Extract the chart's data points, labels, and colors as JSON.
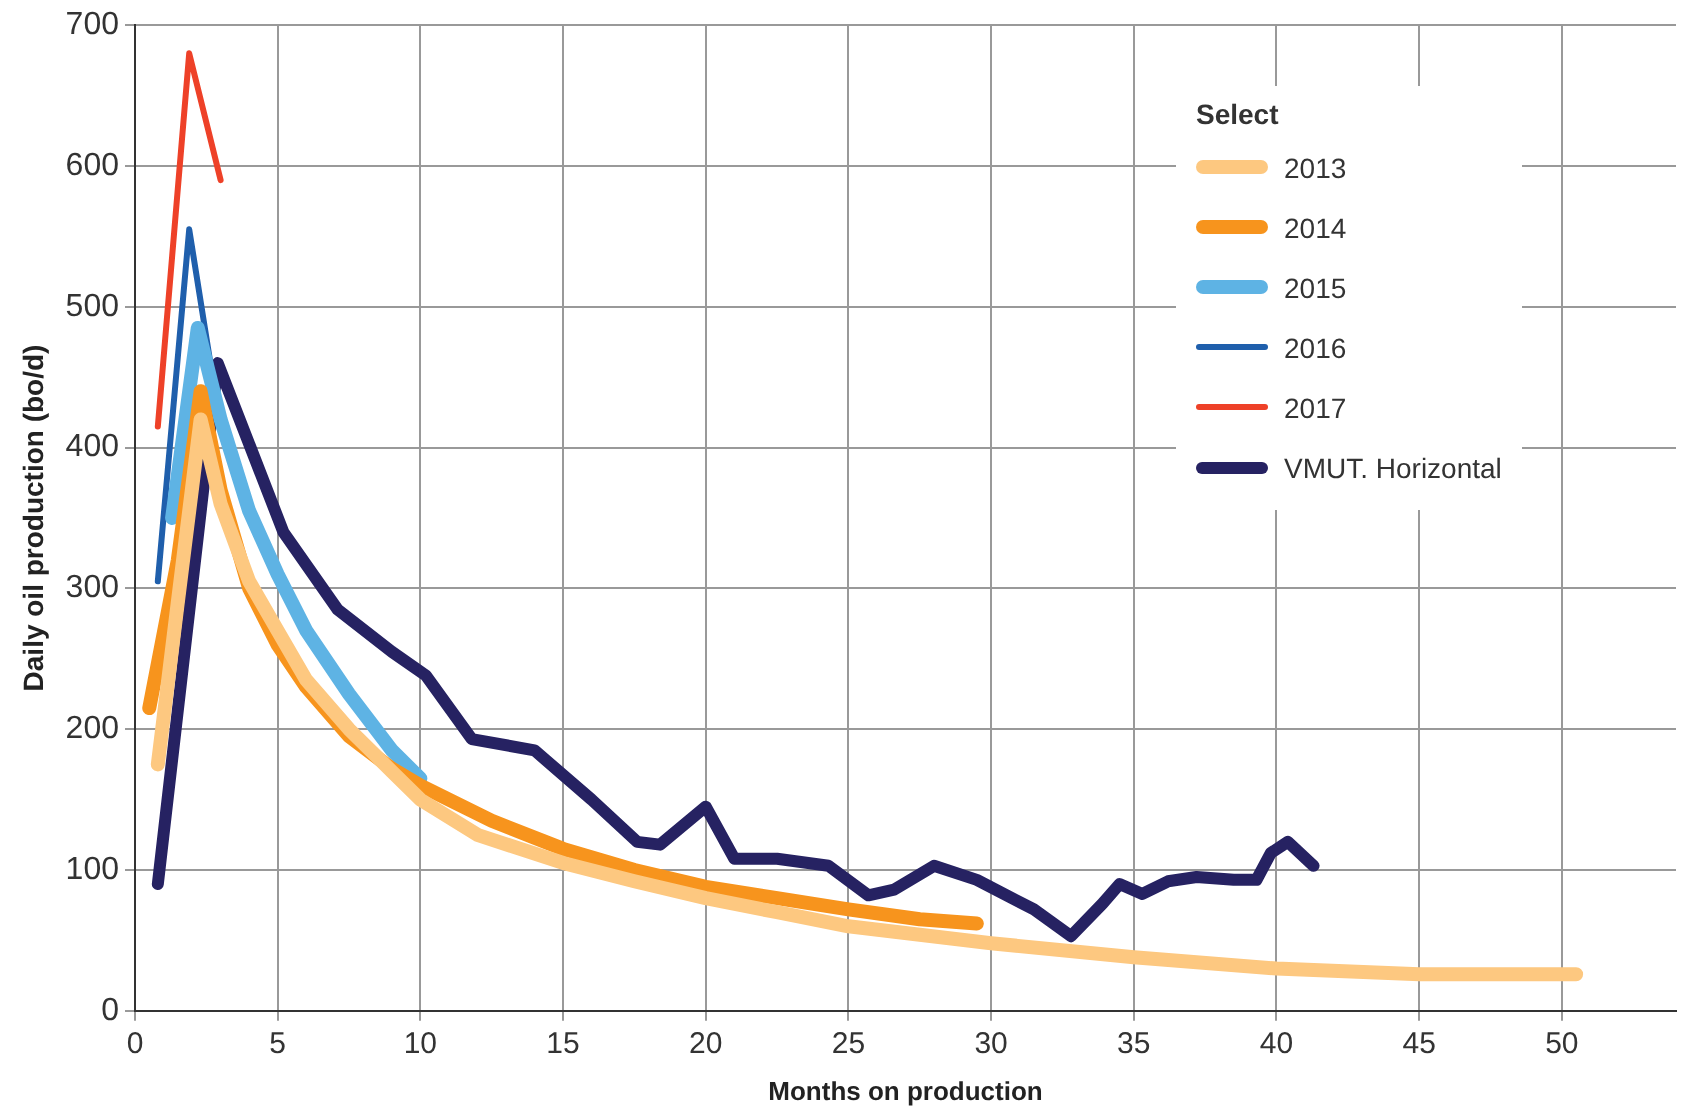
{
  "chart_data": {
    "type": "line",
    "xlabel": "Months on production",
    "ylabel": "Daily oil production (bo/d)",
    "legend_title": "Select",
    "legend": "top right",
    "grid": true,
    "marker": "none",
    "line_style": "solid",
    "xlim": [
      0,
      54
    ],
    "xticks": [
      0,
      5,
      10,
      15,
      20,
      25,
      30,
      35,
      40,
      45,
      50
    ],
    "ylim": [
      0,
      700
    ],
    "yticks": [
      0,
      100,
      200,
      300,
      400,
      500,
      600,
      700
    ],
    "series": [
      {
        "name": "2013",
        "color": "#fdc880",
        "x": [
          0.8,
          1.5,
          2.3,
          3,
          4,
          5,
          6,
          7.5,
          9,
          10,
          12,
          15,
          17.5,
          20,
          22.5,
          25,
          27.5,
          30,
          35,
          40,
          45,
          50.5
        ],
        "values": [
          175,
          290,
          420,
          360,
          305,
          270,
          235,
          200,
          170,
          150,
          125,
          105,
          92,
          80,
          70,
          60,
          54,
          48,
          38,
          30,
          26,
          26
        ]
      },
      {
        "name": "2014",
        "color": "#f7941d",
        "x": [
          0.5,
          1.5,
          2.3,
          3,
          4,
          5,
          6,
          7.5,
          9,
          10,
          12.5,
          15,
          17.5,
          20,
          22.5,
          25,
          27.5,
          29.5
        ],
        "values": [
          215,
          320,
          440,
          370,
          300,
          260,
          230,
          195,
          172,
          160,
          135,
          115,
          100,
          88,
          80,
          72,
          65,
          62
        ]
      },
      {
        "name": "2015",
        "color": "#5eb3e4",
        "x": [
          1.3,
          2.2,
          3,
          4,
          5,
          6,
          7.5,
          9,
          10
        ],
        "values": [
          350,
          485,
          420,
          355,
          310,
          270,
          225,
          185,
          165
        ]
      },
      {
        "name": "2016",
        "color": "#1f5fac",
        "x": [
          0.8,
          1.9,
          2.8,
          3.3
        ],
        "values": [
          305,
          555,
          440,
          400
        ]
      },
      {
        "name": "2017",
        "color": "#ee4128",
        "x": [
          0.8,
          1.9,
          3
        ],
        "values": [
          415,
          680,
          590
        ]
      },
      {
        "name": "VMUT. Horizontal",
        "color": "#262262",
        "x": [
          0.8,
          2.9,
          5.2,
          7.1,
          9,
          10.2,
          11.8,
          14,
          16,
          17.6,
          18.4,
          20,
          21,
          22.5,
          24.3,
          25.7,
          26.6,
          28,
          29.5,
          31.5,
          32.8,
          33.9,
          34.5,
          35.3,
          36.2,
          37.2,
          38.5,
          39.3,
          39.8,
          40.4,
          41.3
        ],
        "values": [
          90,
          460,
          340,
          285,
          255,
          238,
          193,
          185,
          150,
          120,
          118,
          145,
          108,
          108,
          103,
          82,
          86,
          103,
          93,
          72,
          53,
          76,
          90,
          83,
          92,
          95,
          93,
          93,
          112,
          120,
          103
        ]
      }
    ]
  }
}
